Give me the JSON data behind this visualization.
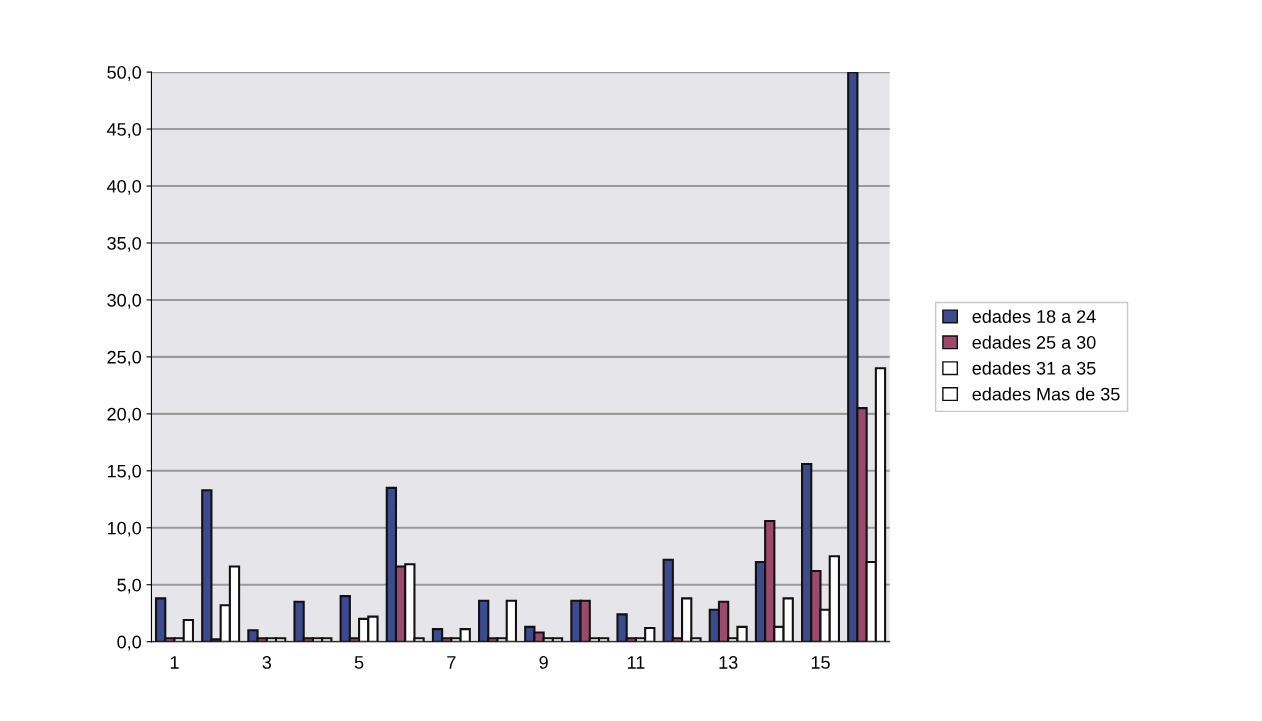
{
  "chart_data": {
    "type": "bar",
    "categories": [
      "1",
      null,
      "3",
      null,
      "5",
      null,
      "7",
      null,
      "9",
      null,
      "11",
      null,
      "13",
      null,
      "15",
      null
    ],
    "series": [
      {
        "name": "edades 18 a 24",
        "color": "#3c4a8e",
        "values": [
          3.8,
          13.3,
          1.0,
          3.5,
          4.0,
          13.5,
          1.1,
          3.6,
          1.3,
          3.6,
          2.4,
          7.2,
          2.8,
          7.0,
          15.6,
          50.0
        ]
      },
      {
        "name": "edades 25 a 30",
        "color": "#9a4a6a",
        "values": [
          0.3,
          0.2,
          0.3,
          0.3,
          0.3,
          6.6,
          0.3,
          0.3,
          0.8,
          3.6,
          0.3,
          0.3,
          3.5,
          10.6,
          6.2,
          20.5
        ]
      },
      {
        "name": "edades 31 a 35",
        "color": "#ffffff",
        "values": [
          0.3,
          3.2,
          0.3,
          0.3,
          2.0,
          6.8,
          0.3,
          0.3,
          0.3,
          0.3,
          0.3,
          3.8,
          0.3,
          1.3,
          2.8,
          7.0
        ]
      },
      {
        "name": "edades Mas de 35",
        "color": "#ffffff",
        "values": [
          1.9,
          6.6,
          0.3,
          0.3,
          2.2,
          0.3,
          1.1,
          3.6,
          0.3,
          0.3,
          1.2,
          0.3,
          1.3,
          3.8,
          7.5,
          24.0
        ]
      }
    ],
    "ylim": [
      0,
      50
    ],
    "yticks": [
      {
        "value": 0,
        "label": "0,0"
      },
      {
        "value": 5,
        "label": "5,0"
      },
      {
        "value": 10,
        "label": "10,0"
      },
      {
        "value": 15,
        "label": "15,0"
      },
      {
        "value": 20,
        "label": "20,0"
      },
      {
        "value": 25,
        "label": "25,0"
      },
      {
        "value": 30,
        "label": "30,0"
      },
      {
        "value": 35,
        "label": "35,0"
      },
      {
        "value": 40,
        "label": "40,0"
      },
      {
        "value": 45,
        "label": "45,0"
      },
      {
        "value": 50,
        "label": "50,0"
      }
    ],
    "grid": "y",
    "legend": "right"
  }
}
